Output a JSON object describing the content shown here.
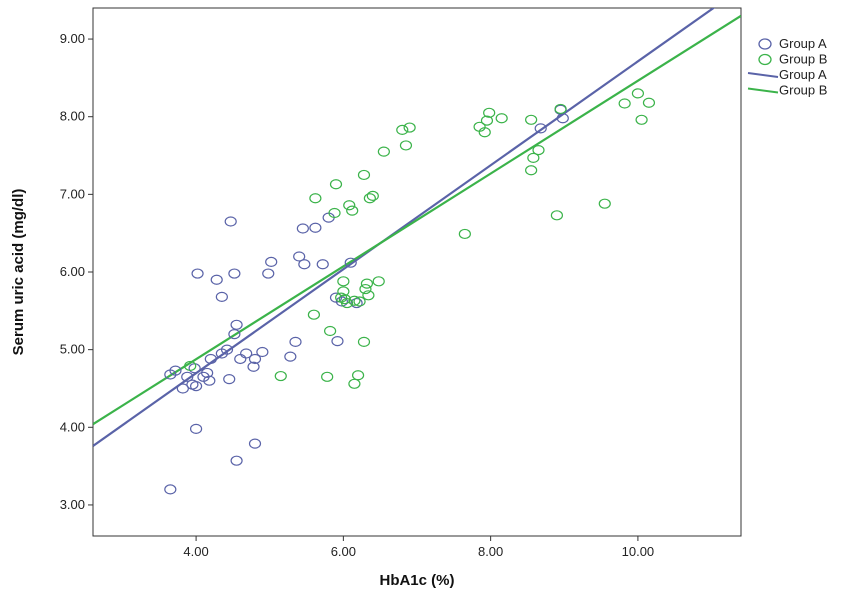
{
  "chart_data": {
    "type": "scatter",
    "xlabel": "HbA1c (%)",
    "ylabel": "Serum uric acid (mg/dl)",
    "xlim": [
      2.6,
      11.4
    ],
    "ylim": [
      2.6,
      9.4
    ],
    "x_ticks": [
      {
        "value": 4,
        "label": "4.00"
      },
      {
        "value": 6,
        "label": "6.00"
      },
      {
        "value": 8,
        "label": "8.00"
      },
      {
        "value": 10,
        "label": "10.00"
      }
    ],
    "y_ticks": [
      {
        "value": 3,
        "label": "3.00"
      },
      {
        "value": 4,
        "label": "4.00"
      },
      {
        "value": 5,
        "label": "5.00"
      },
      {
        "value": 6,
        "label": "6.00"
      },
      {
        "value": 7,
        "label": "7.00"
      },
      {
        "value": 8,
        "label": "8.00"
      },
      {
        "value": 9,
        "label": "9.00"
      }
    ],
    "grid": false,
    "legend_position": "top-right",
    "legend": [
      {
        "label": "Group A",
        "kind": "marker",
        "series": 0
      },
      {
        "label": "Group B",
        "kind": "marker",
        "series": 1
      },
      {
        "label": "Group A",
        "kind": "line",
        "series": 0
      },
      {
        "label": "Group B",
        "kind": "line",
        "series": 1
      }
    ],
    "series": [
      {
        "name": "Group A",
        "color": "#5a63a8",
        "marker": "open-circle",
        "fit_line": {
          "x1": 2.6,
          "y1": 3.76,
          "x2": 11.4,
          "y2": 9.65
        },
        "points": [
          [
            3.65,
            4.68
          ],
          [
            3.72,
            4.73
          ],
          [
            3.82,
            4.5
          ],
          [
            3.88,
            4.65
          ],
          [
            3.95,
            4.55
          ],
          [
            4.0,
            4.53
          ],
          [
            3.98,
            4.76
          ],
          [
            4.02,
            5.98
          ],
          [
            4.0,
            3.98
          ],
          [
            4.1,
            4.65
          ],
          [
            4.15,
            4.7
          ],
          [
            4.18,
            4.6
          ],
          [
            4.2,
            4.88
          ],
          [
            4.28,
            5.9
          ],
          [
            4.35,
            5.68
          ],
          [
            4.35,
            4.95
          ],
          [
            4.42,
            5.0
          ],
          [
            4.45,
            4.62
          ],
          [
            4.47,
            6.65
          ],
          [
            4.52,
            5.98
          ],
          [
            4.52,
            5.2
          ],
          [
            4.55,
            5.32
          ],
          [
            4.6,
            4.88
          ],
          [
            4.68,
            4.95
          ],
          [
            4.78,
            4.78
          ],
          [
            4.8,
            4.88
          ],
          [
            4.9,
            4.97
          ],
          [
            4.98,
            5.98
          ],
          [
            5.02,
            6.13
          ],
          [
            4.55,
            3.57
          ],
          [
            4.8,
            3.79
          ],
          [
            3.65,
            3.2
          ],
          [
            5.28,
            4.91
          ],
          [
            5.35,
            5.1
          ],
          [
            5.4,
            6.2
          ],
          [
            5.45,
            6.56
          ],
          [
            5.47,
            6.1
          ],
          [
            5.62,
            6.57
          ],
          [
            5.72,
            6.1
          ],
          [
            5.8,
            6.7
          ],
          [
            5.9,
            5.67
          ],
          [
            5.92,
            5.11
          ],
          [
            5.98,
            5.62
          ],
          [
            6.1,
            6.12
          ],
          [
            6.18,
            5.6
          ],
          [
            8.68,
            7.85
          ],
          [
            8.95,
            8.09
          ],
          [
            8.98,
            7.98
          ]
        ]
      },
      {
        "name": "Group B",
        "color": "#3bb34a",
        "marker": "open-circle",
        "fit_line": {
          "x1": 2.6,
          "y1": 4.04,
          "x2": 11.4,
          "y2": 9.3
        },
        "points": [
          [
            3.92,
            4.79
          ],
          [
            5.15,
            4.66
          ],
          [
            5.6,
            5.45
          ],
          [
            5.62,
            6.95
          ],
          [
            5.78,
            4.65
          ],
          [
            5.82,
            5.24
          ],
          [
            5.88,
            6.76
          ],
          [
            5.9,
            7.13
          ],
          [
            5.97,
            5.67
          ],
          [
            6.0,
            5.75
          ],
          [
            6.0,
            5.88
          ],
          [
            6.02,
            5.65
          ],
          [
            6.05,
            5.6
          ],
          [
            6.08,
            6.86
          ],
          [
            6.12,
            6.79
          ],
          [
            6.15,
            5.63
          ],
          [
            6.15,
            4.56
          ],
          [
            6.2,
            4.67
          ],
          [
            6.22,
            5.62
          ],
          [
            6.28,
            5.1
          ],
          [
            6.28,
            7.25
          ],
          [
            6.3,
            5.78
          ],
          [
            6.32,
            5.85
          ],
          [
            6.34,
            5.7
          ],
          [
            6.36,
            6.95
          ],
          [
            6.4,
            6.98
          ],
          [
            6.48,
            5.88
          ],
          [
            6.55,
            7.55
          ],
          [
            6.8,
            7.83
          ],
          [
            6.85,
            7.63
          ],
          [
            6.9,
            7.86
          ],
          [
            7.65,
            6.49
          ],
          [
            7.85,
            7.87
          ],
          [
            7.92,
            7.8
          ],
          [
            7.95,
            7.95
          ],
          [
            7.98,
            8.05
          ],
          [
            8.15,
            7.98
          ],
          [
            8.55,
            7.96
          ],
          [
            8.55,
            7.31
          ],
          [
            8.58,
            7.47
          ],
          [
            8.65,
            7.57
          ],
          [
            8.9,
            6.73
          ],
          [
            8.95,
            8.1
          ],
          [
            9.55,
            6.88
          ],
          [
            9.82,
            8.17
          ],
          [
            10.0,
            8.3
          ],
          [
            10.05,
            7.96
          ],
          [
            10.15,
            8.18
          ]
        ]
      }
    ]
  }
}
